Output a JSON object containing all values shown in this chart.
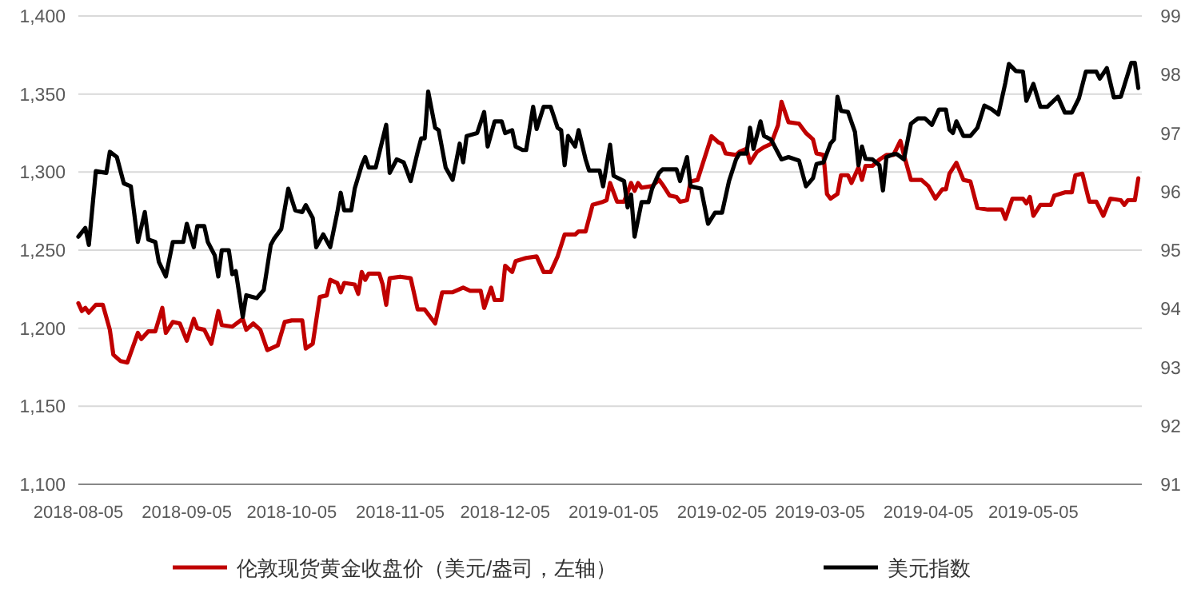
{
  "chart_data": {
    "type": "line",
    "xlim": [
      "2018-08-05",
      "2019-06-05"
    ],
    "xticks": [
      "2018-08-05",
      "2018-09-05",
      "2018-10-05",
      "2018-11-05",
      "2018-12-05",
      "2019-01-05",
      "2019-02-05",
      "2019-03-05",
      "2019-04-05",
      "2019-05-05"
    ],
    "ylim": [
      1100,
      1400
    ],
    "yticks": [
      {
        "value": 1100,
        "label": "1,100"
      },
      {
        "value": 1150,
        "label": "1,150"
      },
      {
        "value": 1200,
        "label": "1,200"
      },
      {
        "value": 1250,
        "label": "1,250"
      },
      {
        "value": 1300,
        "label": "1,300"
      },
      {
        "value": 1350,
        "label": "1,350"
      },
      {
        "value": 1400,
        "label": "1,400"
      }
    ],
    "y2lim": [
      91,
      99
    ],
    "y2ticks": [
      91,
      92,
      93,
      94,
      95,
      96,
      97,
      98,
      99
    ],
    "grid": "y",
    "legend": "bottom",
    "series": [
      {
        "name": "伦敦现货黄金收盘价（美元/盎司，左轴）",
        "color": "#c00000",
        "x": [
          "2018-08-05",
          "2018-08-06",
          "2018-08-07",
          "2018-08-08",
          "2018-08-10",
          "2018-08-12",
          "2018-08-14",
          "2018-08-15",
          "2018-08-17",
          "2018-08-19",
          "2018-08-22",
          "2018-08-23",
          "2018-08-25",
          "2018-08-27",
          "2018-08-29",
          "2018-08-30",
          "2018-09-01",
          "2018-09-03",
          "2018-09-05",
          "2018-09-07",
          "2018-09-08",
          "2018-09-10",
          "2018-09-12",
          "2018-09-14",
          "2018-09-15",
          "2018-09-18",
          "2018-09-21",
          "2018-09-22",
          "2018-09-24",
          "2018-09-26",
          "2018-09-28",
          "2018-10-01",
          "2018-10-03",
          "2018-10-05",
          "2018-10-08",
          "2018-10-09",
          "2018-10-11",
          "2018-10-13",
          "2018-10-15",
          "2018-10-16",
          "2018-10-18",
          "2018-10-19",
          "2018-10-20",
          "2018-10-23",
          "2018-10-24",
          "2018-10-25",
          "2018-10-26",
          "2018-10-27",
          "2018-10-30",
          "2018-10-31",
          "2018-11-01",
          "2018-11-02",
          "2018-11-05",
          "2018-11-08",
          "2018-11-10",
          "2018-11-12",
          "2018-11-15",
          "2018-11-17",
          "2018-11-20",
          "2018-11-23",
          "2018-11-25",
          "2018-11-28",
          "2018-11-29",
          "2018-12-01",
          "2018-12-02",
          "2018-12-04",
          "2018-12-05",
          "2018-12-07",
          "2018-12-08",
          "2018-12-11",
          "2018-12-14",
          "2018-12-16",
          "2018-12-18",
          "2018-12-20",
          "2018-12-22",
          "2018-12-25",
          "2018-12-26",
          "2018-12-28",
          "2018-12-30",
          "2019-01-02",
          "2019-01-03",
          "2019-01-04",
          "2019-01-06",
          "2019-01-08",
          "2019-01-10",
          "2019-01-11",
          "2019-01-12",
          "2019-01-13",
          "2019-01-16",
          "2019-01-18",
          "2019-01-19",
          "2019-01-21",
          "2019-01-23",
          "2019-01-24",
          "2019-01-26",
          "2019-01-27",
          "2019-01-29",
          "2019-01-31",
          "2019-02-02",
          "2019-02-04",
          "2019-02-05",
          "2019-02-06",
          "2019-02-09",
          "2019-02-10",
          "2019-02-12",
          "2019-02-13",
          "2019-02-15",
          "2019-02-17",
          "2019-02-19",
          "2019-02-21",
          "2019-02-22",
          "2019-02-24",
          "2019-02-27",
          "2019-03-01",
          "2019-03-03",
          "2019-03-04",
          "2019-03-06",
          "2019-03-07",
          "2019-03-08",
          "2019-03-10",
          "2019-03-11",
          "2019-03-13",
          "2019-03-14",
          "2019-03-16",
          "2019-03-17",
          "2019-03-18",
          "2019-03-20",
          "2019-03-22",
          "2019-03-24",
          "2019-03-26",
          "2019-03-28",
          "2019-03-29",
          "2019-03-31",
          "2019-04-03",
          "2019-04-05",
          "2019-04-07",
          "2019-04-09",
          "2019-04-10",
          "2019-04-11",
          "2019-04-13",
          "2019-04-15",
          "2019-04-17",
          "2019-04-19",
          "2019-04-22",
          "2019-04-26",
          "2019-04-27",
          "2019-04-29",
          "2019-05-02",
          "2019-05-03",
          "2019-05-04",
          "2019-05-05",
          "2019-05-07",
          "2019-05-10",
          "2019-05-11",
          "2019-05-14",
          "2019-05-16",
          "2019-05-17",
          "2019-05-19",
          "2019-05-21",
          "2019-05-23",
          "2019-05-25",
          "2019-05-27",
          "2019-05-30",
          "2019-05-31",
          "2019-06-01",
          "2019-06-03",
          "2019-06-04"
        ],
        "values": [
          1216,
          1211,
          1213,
          1210,
          1215,
          1215,
          1199,
          1183,
          1179,
          1178,
          1197,
          1193,
          1198,
          1198,
          1213,
          1197,
          1204,
          1203,
          1192,
          1206,
          1200,
          1199,
          1190,
          1211,
          1202,
          1201,
          1206,
          1199,
          1203,
          1199,
          1186,
          1189,
          1204,
          1205,
          1205,
          1187,
          1190,
          1220,
          1221,
          1231,
          1229,
          1223,
          1229,
          1228,
          1222,
          1236,
          1231,
          1235,
          1235,
          1228,
          1215,
          1232,
          1233,
          1232,
          1212,
          1212,
          1203,
          1223,
          1223,
          1226,
          1224,
          1224,
          1213,
          1226,
          1218,
          1218,
          1240,
          1236,
          1243,
          1245,
          1246,
          1236,
          1236,
          1246,
          1260,
          1260,
          1262,
          1262,
          1279,
          1281,
          1282,
          1293,
          1281,
          1281,
          1293,
          1288,
          1293,
          1290,
          1291,
          1295,
          1292,
          1285,
          1284,
          1281,
          1282,
          1294,
          1295,
          1309,
          1323,
          1319,
          1318,
          1312,
          1311,
          1313,
          1315,
          1306,
          1313,
          1316,
          1318,
          1330,
          1345,
          1332,
          1331,
          1325,
          1321,
          1312,
          1311,
          1286,
          1283,
          1286,
          1298,
          1298,
          1293,
          1303,
          1295,
          1304,
          1304,
          1308,
          1311,
          1311,
          1320,
          1311,
          1295,
          1295,
          1291,
          1283,
          1289,
          1289,
          1299,
          1306,
          1295,
          1294,
          1277,
          1276,
          1276,
          1270,
          1283,
          1283,
          1280,
          1284,
          1272,
          1279,
          1279,
          1285,
          1287,
          1287,
          1298,
          1299,
          1281,
          1281,
          1272,
          1283,
          1282,
          1279,
          1282,
          1282,
          1296
        ]
      },
      {
        "name": "美元指数",
        "color": "#000000",
        "axis": "y2",
        "x": [
          "2018-08-05",
          "2018-08-07",
          "2018-08-08",
          "2018-08-10",
          "2018-08-13",
          "2018-08-14",
          "2018-08-16",
          "2018-08-18",
          "2018-08-20",
          "2018-08-22",
          "2018-08-24",
          "2018-08-25",
          "2018-08-27",
          "2018-08-28",
          "2018-08-30",
          "2018-09-01",
          "2018-09-04",
          "2018-09-05",
          "2018-09-07",
          "2018-09-08",
          "2018-09-10",
          "2018-09-11",
          "2018-09-13",
          "2018-09-14",
          "2018-09-15",
          "2018-09-17",
          "2018-09-18",
          "2018-09-19",
          "2018-09-21",
          "2018-09-22",
          "2018-09-25",
          "2018-09-27",
          "2018-09-29",
          "2018-09-30",
          "2018-10-02",
          "2018-10-04",
          "2018-10-06",
          "2018-10-08",
          "2018-10-09",
          "2018-10-11",
          "2018-10-12",
          "2018-10-14",
          "2018-10-16",
          "2018-10-18",
          "2018-10-19",
          "2018-10-20",
          "2018-10-22",
          "2018-10-23",
          "2018-10-25",
          "2018-10-26",
          "2018-10-27",
          "2018-10-29",
          "2018-11-01",
          "2018-11-02",
          "2018-11-04",
          "2018-11-06",
          "2018-11-08",
          "2018-11-10",
          "2018-11-11",
          "2018-11-12",
          "2018-11-13",
          "2018-11-15",
          "2018-11-16",
          "2018-11-18",
          "2018-11-20",
          "2018-11-22",
          "2018-11-23",
          "2018-11-24",
          "2018-11-27",
          "2018-11-29",
          "2018-11-30",
          "2018-12-02",
          "2018-12-04",
          "2018-12-05",
          "2018-12-07",
          "2018-12-08",
          "2018-12-10",
          "2018-12-11",
          "2018-12-13",
          "2018-12-14",
          "2018-12-16",
          "2018-12-18",
          "2018-12-20",
          "2018-12-21",
          "2018-12-22",
          "2018-12-23",
          "2018-12-25",
          "2018-12-26",
          "2018-12-28",
          "2018-12-29",
          "2019-01-01",
          "2019-01-02",
          "2019-01-04",
          "2019-01-05",
          "2019-01-08",
          "2019-01-09",
          "2019-01-10",
          "2019-01-11",
          "2019-01-13",
          "2019-01-15",
          "2019-01-16",
          "2019-01-18",
          "2019-01-19",
          "2019-01-23",
          "2019-01-24",
          "2019-01-26",
          "2019-01-27",
          "2019-01-30",
          "2019-02-01",
          "2019-02-03",
          "2019-02-05",
          "2019-02-07",
          "2019-02-09",
          "2019-02-10",
          "2019-02-12",
          "2019-02-13",
          "2019-02-14",
          "2019-02-16",
          "2019-02-17",
          "2019-02-19",
          "2019-02-22",
          "2019-02-24",
          "2019-02-27",
          "2019-03-01",
          "2019-03-03",
          "2019-03-04",
          "2019-03-06",
          "2019-03-08",
          "2019-03-09",
          "2019-03-10",
          "2019-03-11",
          "2019-03-13",
          "2019-03-15",
          "2019-03-16",
          "2019-03-17",
          "2019-03-18",
          "2019-03-20",
          "2019-03-22",
          "2019-03-23",
          "2019-03-24",
          "2019-03-26",
          "2019-03-27",
          "2019-03-29",
          "2019-03-31",
          "2019-04-02",
          "2019-04-04",
          "2019-04-06",
          "2019-04-08",
          "2019-04-10",
          "2019-04-11",
          "2019-04-12",
          "2019-04-13",
          "2019-04-15",
          "2019-04-17",
          "2019-04-19",
          "2019-04-21",
          "2019-04-23",
          "2019-04-25",
          "2019-04-27",
          "2019-04-28",
          "2019-04-30",
          "2019-05-02",
          "2019-05-03",
          "2019-05-05",
          "2019-05-07",
          "2019-05-09",
          "2019-05-12",
          "2019-05-14",
          "2019-05-16",
          "2019-05-18",
          "2019-05-20",
          "2019-05-23",
          "2019-05-24",
          "2019-05-26",
          "2019-05-28",
          "2019-05-30",
          "2019-06-02",
          "2019-06-03",
          "2019-06-04"
        ],
        "values": [
          95.23,
          95.38,
          95.09,
          96.35,
          96.32,
          96.68,
          96.59,
          96.14,
          96.09,
          95.14,
          95.65,
          95.18,
          95.14,
          94.8,
          94.55,
          95.14,
          95.14,
          95.45,
          95.05,
          95.41,
          95.41,
          95.14,
          94.91,
          94.55,
          95.0,
          95.0,
          94.59,
          94.64,
          93.86,
          94.23,
          94.18,
          94.32,
          95.09,
          95.2,
          95.36,
          96.05,
          95.68,
          95.65,
          95.77,
          95.55,
          95.05,
          95.27,
          95.05,
          95.64,
          95.98,
          95.68,
          95.68,
          96.05,
          96.45,
          96.59,
          96.41,
          96.41,
          97.14,
          96.32,
          96.55,
          96.5,
          96.18,
          96.68,
          96.91,
          96.91,
          97.71,
          97.09,
          97.05,
          96.41,
          96.2,
          96.82,
          96.5,
          96.95,
          97.0,
          97.36,
          96.77,
          97.2,
          97.2,
          97.0,
          97.05,
          96.77,
          96.71,
          96.71,
          97.45,
          97.07,
          97.45,
          97.45,
          97.09,
          97.05,
          96.45,
          96.95,
          96.77,
          97.05,
          96.55,
          96.36,
          96.36,
          96.09,
          96.8,
          96.27,
          96.18,
          95.73,
          95.95,
          95.23,
          95.82,
          95.82,
          96.05,
          96.32,
          96.38,
          96.38,
          96.18,
          96.59,
          96.09,
          96.05,
          95.45,
          95.64,
          95.64,
          96.18,
          96.55,
          96.65,
          96.65,
          97.09,
          96.73,
          97.2,
          96.95,
          96.89,
          96.55,
          96.59,
          96.53,
          96.09,
          96.23,
          96.47,
          96.5,
          96.82,
          96.89,
          97.62,
          97.38,
          97.36,
          97.02,
          96.45,
          96.77,
          96.56,
          96.55,
          96.45,
          96.02,
          96.59,
          96.64,
          96.64,
          96.55,
          97.16,
          97.25,
          97.25,
          97.14,
          97.4,
          97.4,
          97.06,
          97.0,
          97.2,
          96.95,
          96.95,
          97.09,
          97.47,
          97.41,
          97.32,
          97.86,
          98.18,
          98.06,
          98.05,
          97.55,
          97.84,
          97.45,
          97.45,
          97.62,
          97.35,
          97.35,
          97.59,
          98.05,
          98.05,
          97.93,
          98.11,
          97.61,
          97.62,
          98.2,
          98.2,
          97.77
        ]
      }
    ]
  }
}
